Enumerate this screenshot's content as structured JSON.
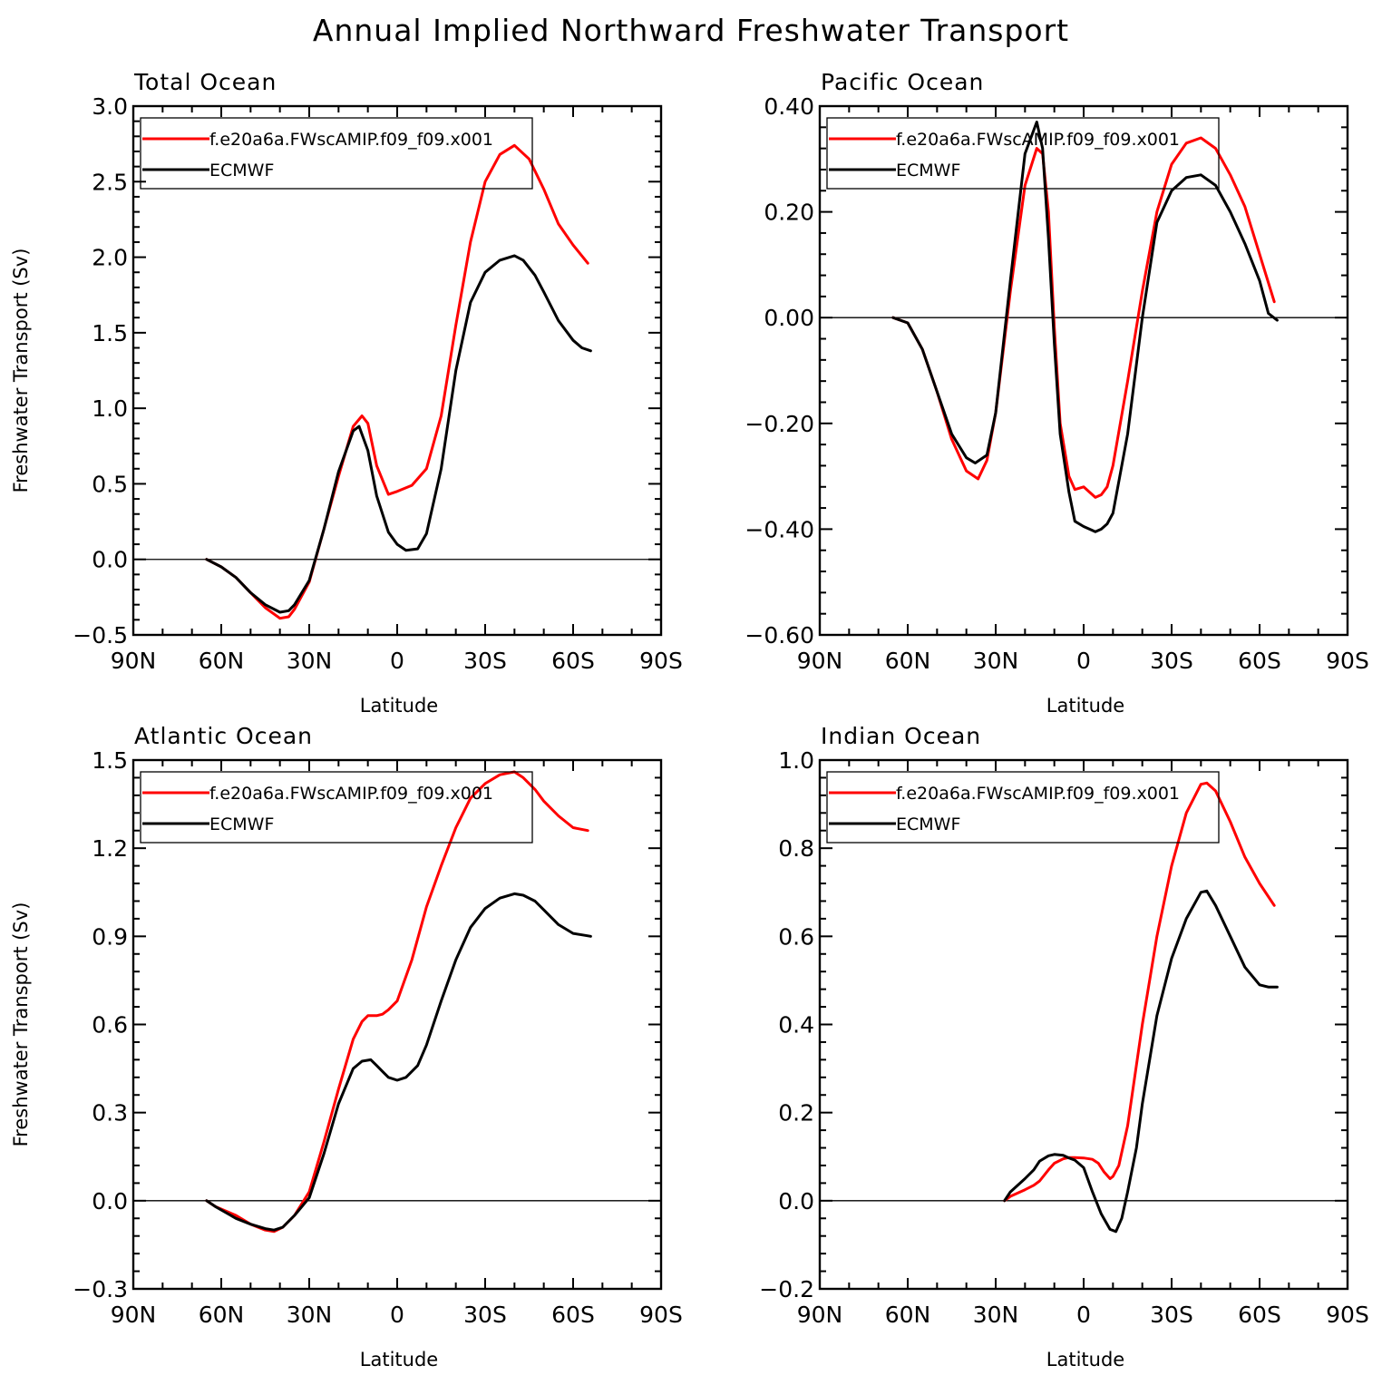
{
  "figure_title": "Annual Implied Northward Freshwater Transport",
  "colors": {
    "model": "#ff0000",
    "obs": "#000000"
  },
  "chart_data": [
    {
      "type": "line",
      "title": "Total Ocean",
      "xlabel": "Latitude",
      "ylabel": "Freshwater Transport (Sv)",
      "xlim": [
        90,
        -90
      ],
      "xticks": [
        90,
        60,
        30,
        0,
        -30,
        -60,
        -90
      ],
      "xtick_labels": [
        "90N",
        "60N",
        "30N",
        "0",
        "30S",
        "60S",
        "90S"
      ],
      "ylim": [
        -0.5,
        3.0
      ],
      "yticks": [
        -0.5,
        0.0,
        0.5,
        1.0,
        1.5,
        2.0,
        2.5,
        3.0
      ],
      "ytick_labels": [
        "−0.5",
        "0.0",
        "0.5",
        "1.0",
        "1.5",
        "2.0",
        "2.5",
        "3.0"
      ],
      "zero_line": true,
      "legend_position": "top-left",
      "series": [
        {
          "name": "f.e20a6a.FWscAMIP.f09_f09.x001",
          "color": "#ff0000",
          "x": [
            65,
            60,
            55,
            50,
            45,
            40,
            37,
            35,
            30,
            25,
            20,
            15,
            12,
            10,
            7,
            3,
            0,
            -5,
            -10,
            -15,
            -20,
            -25,
            -30,
            -35,
            -40,
            -45,
            -50,
            -55,
            -60,
            -65
          ],
          "y": [
            0.0,
            -0.05,
            -0.12,
            -0.22,
            -0.32,
            -0.39,
            -0.38,
            -0.33,
            -0.15,
            0.2,
            0.55,
            0.88,
            0.95,
            0.9,
            0.62,
            0.43,
            0.45,
            0.49,
            0.6,
            0.95,
            1.55,
            2.1,
            2.5,
            2.68,
            2.74,
            2.65,
            2.45,
            2.22,
            2.08,
            1.96
          ]
        },
        {
          "name": "ECMWF",
          "color": "#000000",
          "x": [
            65,
            60,
            55,
            50,
            45,
            40,
            37,
            35,
            30,
            25,
            20,
            15,
            13,
            10,
            7,
            3,
            0,
            -3,
            -7,
            -10,
            -15,
            -20,
            -25,
            -30,
            -35,
            -40,
            -43,
            -47,
            -50,
            -55,
            -60,
            -63,
            -66
          ],
          "y": [
            0.0,
            -0.05,
            -0.12,
            -0.22,
            -0.3,
            -0.35,
            -0.34,
            -0.3,
            -0.14,
            0.2,
            0.58,
            0.85,
            0.88,
            0.72,
            0.42,
            0.18,
            0.1,
            0.06,
            0.07,
            0.17,
            0.6,
            1.25,
            1.7,
            1.9,
            1.98,
            2.01,
            1.98,
            1.88,
            1.77,
            1.58,
            1.45,
            1.4,
            1.38
          ]
        }
      ]
    },
    {
      "type": "line",
      "title": "Pacific Ocean",
      "xlabel": "Latitude",
      "ylabel": "",
      "xlim": [
        90,
        -90
      ],
      "xticks": [
        90,
        60,
        30,
        0,
        -30,
        -60,
        -90
      ],
      "xtick_labels": [
        "90N",
        "60N",
        "30N",
        "0",
        "30S",
        "60S",
        "90S"
      ],
      "ylim": [
        -0.6,
        0.4
      ],
      "yticks": [
        -0.6,
        -0.4,
        -0.2,
        0.0,
        0.2,
        0.4
      ],
      "ytick_labels": [
        "−0.60",
        "−0.40",
        "−0.20",
        "0.00",
        "0.20",
        "0.40"
      ],
      "zero_line": true,
      "legend_position": "top-left",
      "series": [
        {
          "name": "f.e20a6a.FWscAMIP.f09_f09.x001",
          "color": "#ff0000",
          "x": [
            65,
            60,
            55,
            50,
            45,
            40,
            36,
            33,
            30,
            25,
            20,
            16,
            14,
            12,
            10,
            8,
            5,
            3,
            0,
            -2,
            -4,
            -6,
            -8,
            -10,
            -15,
            -20,
            -25,
            -30,
            -35,
            -40,
            -45,
            -50,
            -55,
            -60,
            -65
          ],
          "y": [
            0.0,
            -0.01,
            -0.06,
            -0.14,
            -0.23,
            -0.29,
            -0.305,
            -0.27,
            -0.18,
            0.05,
            0.25,
            0.32,
            0.31,
            0.2,
            -0.02,
            -0.2,
            -0.3,
            -0.325,
            -0.32,
            -0.33,
            -0.34,
            -0.335,
            -0.32,
            -0.28,
            -0.12,
            0.05,
            0.2,
            0.29,
            0.33,
            0.34,
            0.32,
            0.27,
            0.21,
            0.12,
            0.03
          ]
        },
        {
          "name": "ECMWF",
          "color": "#000000",
          "x": [
            65,
            60,
            55,
            50,
            45,
            40,
            37,
            33,
            30,
            25,
            20,
            16,
            14,
            12,
            10,
            8,
            5,
            3,
            0,
            -2,
            -4,
            -6,
            -8,
            -10,
            -15,
            -20,
            -25,
            -30,
            -35,
            -40,
            -45,
            -50,
            -55,
            -60,
            -63,
            -66
          ],
          "y": [
            0.0,
            -0.01,
            -0.06,
            -0.14,
            -0.22,
            -0.265,
            -0.275,
            -0.26,
            -0.18,
            0.07,
            0.31,
            0.37,
            0.32,
            0.15,
            -0.05,
            -0.22,
            -0.33,
            -0.385,
            -0.395,
            -0.4,
            -0.405,
            -0.4,
            -0.39,
            -0.37,
            -0.22,
            0.0,
            0.18,
            0.24,
            0.265,
            0.27,
            0.25,
            0.2,
            0.14,
            0.07,
            0.008,
            -0.005
          ]
        }
      ]
    },
    {
      "type": "line",
      "title": "Atlantic Ocean",
      "xlabel": "Latitude",
      "ylabel": "Freshwater Transport (Sv)",
      "xlim": [
        90,
        -90
      ],
      "xticks": [
        90,
        60,
        30,
        0,
        -30,
        -60,
        -90
      ],
      "xtick_labels": [
        "90N",
        "60N",
        "30N",
        "0",
        "30S",
        "60S",
        "90S"
      ],
      "ylim": [
        -0.3,
        1.5
      ],
      "yticks": [
        -0.3,
        0.0,
        0.3,
        0.6,
        0.9,
        1.2,
        1.5
      ],
      "ytick_labels": [
        "−0.3",
        "0.0",
        "0.3",
        "0.6",
        "0.9",
        "1.2",
        "1.5"
      ],
      "zero_line": true,
      "legend_position": "top-left",
      "series": [
        {
          "name": "f.e20a6a.FWscAMIP.f09_f09.x001",
          "color": "#ff0000",
          "x": [
            65,
            62,
            55,
            50,
            45,
            42,
            39,
            35,
            30,
            25,
            20,
            15,
            12,
            10,
            7,
            5,
            3,
            0,
            -5,
            -10,
            -15,
            -20,
            -25,
            -30,
            -35,
            -40,
            -43,
            -47,
            -50,
            -55,
            -60,
            -65
          ],
          "y": [
            0.0,
            -0.02,
            -0.05,
            -0.08,
            -0.1,
            -0.105,
            -0.09,
            -0.05,
            0.03,
            0.2,
            0.38,
            0.55,
            0.61,
            0.63,
            0.63,
            0.635,
            0.65,
            0.68,
            0.82,
            1.0,
            1.14,
            1.27,
            1.37,
            1.42,
            1.45,
            1.46,
            1.44,
            1.4,
            1.36,
            1.31,
            1.27,
            1.26
          ]
        },
        {
          "name": "ECMWF",
          "color": "#000000",
          "x": [
            65,
            62,
            55,
            50,
            45,
            42,
            39,
            35,
            30,
            25,
            20,
            15,
            12,
            9,
            7,
            5,
            3,
            0,
            -3,
            -7,
            -10,
            -15,
            -20,
            -25,
            -30,
            -35,
            -40,
            -43,
            -47,
            -50,
            -55,
            -60,
            -63,
            -66
          ],
          "y": [
            0.0,
            -0.02,
            -0.06,
            -0.08,
            -0.095,
            -0.1,
            -0.09,
            -0.05,
            0.01,
            0.16,
            0.33,
            0.45,
            0.475,
            0.48,
            0.46,
            0.44,
            0.42,
            0.41,
            0.42,
            0.46,
            0.53,
            0.68,
            0.82,
            0.93,
            0.995,
            1.03,
            1.045,
            1.04,
            1.02,
            0.99,
            0.94,
            0.91,
            0.905,
            0.9
          ]
        }
      ]
    },
    {
      "type": "line",
      "title": "Indian Ocean",
      "xlabel": "Latitude",
      "ylabel": "",
      "xlim": [
        90,
        -90
      ],
      "xticks": [
        90,
        60,
        30,
        0,
        -30,
        -60,
        -90
      ],
      "xtick_labels": [
        "90N",
        "60N",
        "30N",
        "0",
        "30S",
        "60S",
        "90S"
      ],
      "ylim": [
        -0.2,
        1.0
      ],
      "yticks": [
        -0.2,
        0.0,
        0.2,
        0.4,
        0.6,
        0.8,
        1.0
      ],
      "ytick_labels": [
        "−0.2",
        "0.0",
        "0.2",
        "0.4",
        "0.6",
        "0.8",
        "1.0"
      ],
      "zero_line": true,
      "legend_position": "top-left",
      "series": [
        {
          "name": "f.e20a6a.FWscAMIP.f09_f09.x001",
          "color": "#ff0000",
          "x": [
            27,
            25,
            20,
            17,
            15,
            12,
            10,
            7,
            5,
            3,
            0,
            -3,
            -5,
            -7,
            -9,
            -10,
            -12,
            -15,
            -20,
            -25,
            -30,
            -35,
            -40,
            -42,
            -45,
            -50,
            -55,
            -60,
            -65
          ],
          "y": [
            0.0,
            0.01,
            0.025,
            0.035,
            0.045,
            0.07,
            0.085,
            0.095,
            0.098,
            0.098,
            0.097,
            0.094,
            0.085,
            0.065,
            0.05,
            0.055,
            0.08,
            0.17,
            0.4,
            0.6,
            0.76,
            0.88,
            0.945,
            0.948,
            0.93,
            0.86,
            0.78,
            0.72,
            0.67
          ]
        },
        {
          "name": "ECMWF",
          "color": "#000000",
          "x": [
            27,
            25,
            20,
            17,
            15,
            12,
            10,
            7,
            5,
            3,
            0,
            -3,
            -6,
            -9,
            -11,
            -13,
            -15,
            -18,
            -20,
            -25,
            -30,
            -35,
            -40,
            -42,
            -45,
            -50,
            -55,
            -60,
            -63,
            -66
          ],
          "y": [
            0.0,
            0.02,
            0.05,
            0.07,
            0.09,
            0.102,
            0.105,
            0.103,
            0.097,
            0.092,
            0.075,
            0.02,
            -0.03,
            -0.065,
            -0.07,
            -0.04,
            0.02,
            0.12,
            0.22,
            0.42,
            0.55,
            0.64,
            0.7,
            0.703,
            0.67,
            0.6,
            0.53,
            0.49,
            0.485,
            0.485
          ]
        }
      ]
    }
  ]
}
